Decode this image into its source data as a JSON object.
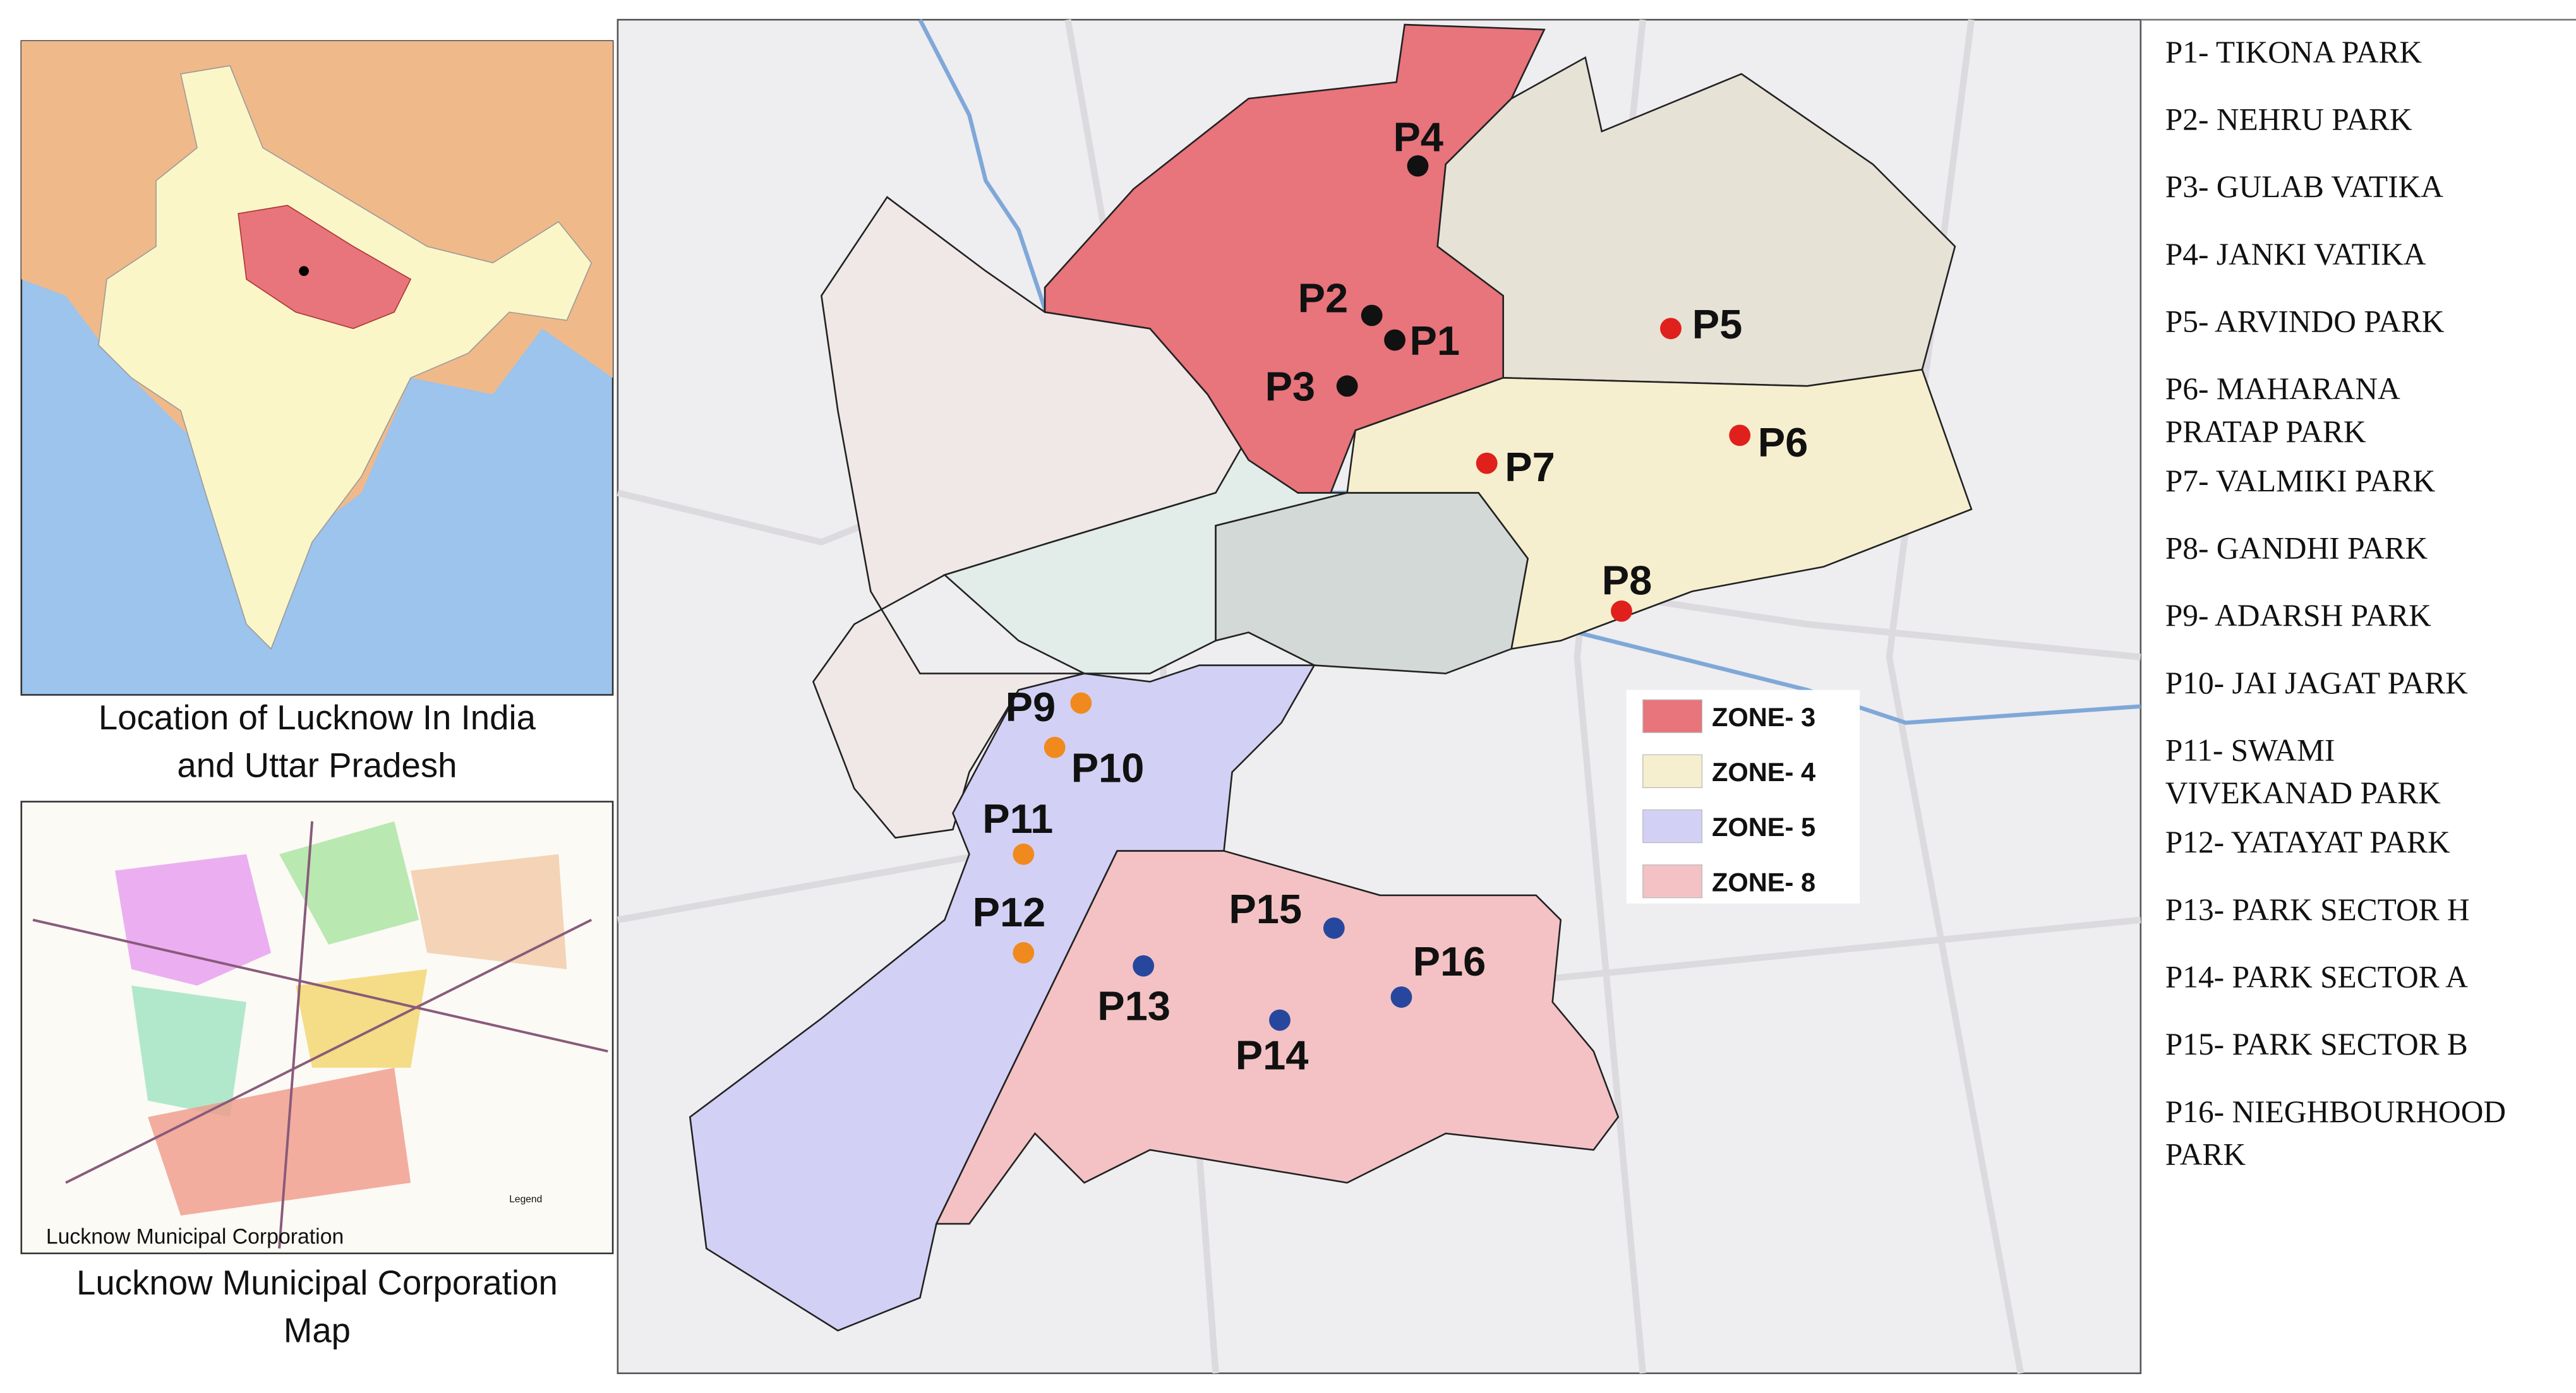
{
  "left_panel": {
    "india_caption": [
      "Location of Lucknow In India",
      "and Uttar Pradesh"
    ],
    "municipal_inset_label": "Lucknow Municipal Corporation",
    "municipal_inset_legend": "Legend",
    "municipal_caption": [
      "Lucknow Municipal Corporation",
      "Map"
    ]
  },
  "map": {
    "parks": [
      "P1",
      "P2",
      "P3",
      "P4",
      "P5",
      "P6",
      "P7",
      "P8",
      "P9",
      "P10",
      "P11",
      "P12",
      "P13",
      "P14",
      "P15",
      "P16"
    ],
    "zone_legend": [
      {
        "label": "ZONE- 3",
        "color": "#e8747c"
      },
      {
        "label": "ZONE- 4",
        "color": "#f6efcf"
      },
      {
        "label": "ZONE- 5",
        "color": "#d2d0f5"
      },
      {
        "label": "ZONE- 8",
        "color": "#f4c2c4"
      }
    ]
  },
  "park_list": [
    [
      "P1- TIKONA PARK"
    ],
    [
      "P2- NEHRU PARK"
    ],
    [
      "P3- GULAB VATIKA"
    ],
    [
      "P4- JANKI VATIKA"
    ],
    [
      "P5- ARVINDO PARK"
    ],
    [
      "P6- MAHARANA",
      "PRATAP PARK"
    ],
    [
      "P7- VALMIKI PARK"
    ],
    [
      "P8- GANDHI PARK"
    ],
    [
      "P9- ADARSH PARK"
    ],
    [
      "P10- JAI JAGAT PARK"
    ],
    [
      "P11- SWAMI",
      "VIVEKANAD PARK"
    ],
    [
      "P12- YATAYAT PARK"
    ],
    [
      "P13- PARK SECTOR H"
    ],
    [
      "P14- PARK SECTOR A"
    ],
    [
      "P15- PARK SECTOR B"
    ],
    [
      "P16- NIEGHBOURHOOD",
      "PARK"
    ]
  ]
}
